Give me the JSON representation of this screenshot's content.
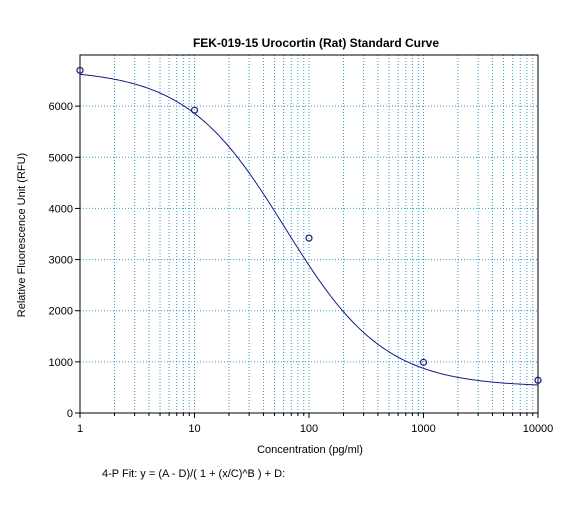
{
  "chart_data": {
    "type": "scatter",
    "title": "FEK-019-15 Urocortin (Rat) Standard Curve",
    "xlabel": "Concentration (pg/ml)",
    "ylabel": "Relative Fluorescence Unit (RFU)",
    "x_scale": "log",
    "xlim": [
      1,
      10000
    ],
    "ylim": [
      0,
      7000
    ],
    "x_ticks": [
      1,
      10,
      100,
      1000,
      10000
    ],
    "x_tick_labels": [
      "1",
      "10",
      "100",
      "1000",
      "10000"
    ],
    "y_ticks": [
      0,
      1000,
      2000,
      3000,
      4000,
      5000,
      6000
    ],
    "y_tick_labels": [
      "0",
      "1000",
      "2000",
      "3000",
      "4000",
      "5000",
      "6000"
    ],
    "grid": true,
    "colors": {
      "grid": "#3399cc",
      "curve": "#1a1a80",
      "points": "#1a1a80"
    },
    "series": [
      {
        "type": "scatter",
        "x": [
          1,
          10,
          100,
          1000,
          10000
        ],
        "y": [
          6700,
          5920,
          3420,
          990,
          640
        ]
      }
    ],
    "fit": {
      "type": "4-parameter logistic",
      "A": 6720,
      "B": 1.0,
      "C": 62,
      "D": 510,
      "formula": "4-P Fit:  y = (A - D)/( 1 + (x/C)^B ) + D:"
    }
  }
}
